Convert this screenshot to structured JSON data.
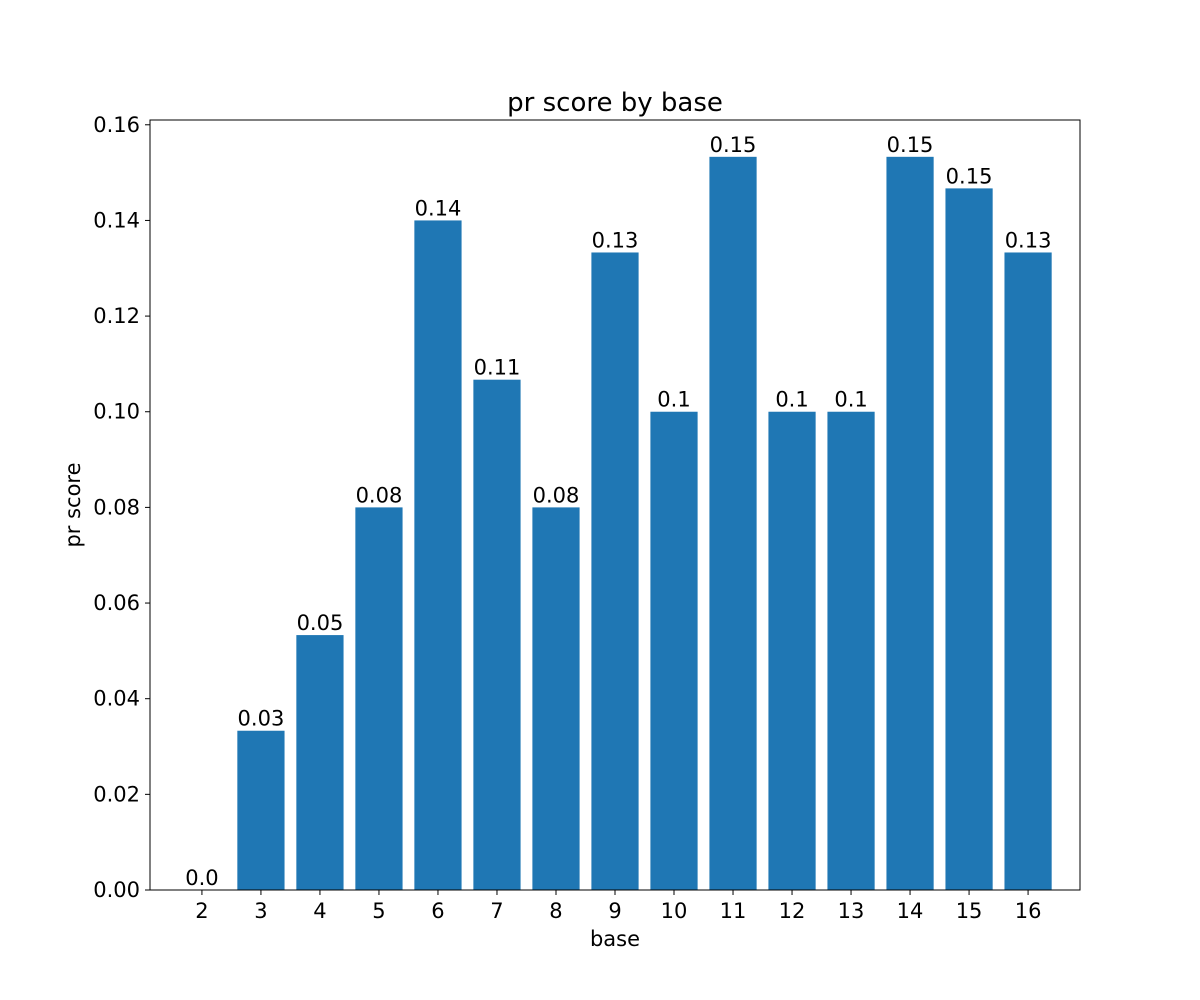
{
  "chart_data": {
    "type": "bar",
    "title": "pr score by base",
    "xlabel": "base",
    "ylabel": "pr score",
    "categories": [
      "2",
      "3",
      "4",
      "5",
      "6",
      "7",
      "8",
      "9",
      "10",
      "11",
      "12",
      "13",
      "14",
      "15",
      "16"
    ],
    "values": [
      0.0,
      0.0333,
      0.0533,
      0.08,
      0.14,
      0.1067,
      0.08,
      0.1333,
      0.1,
      0.1533,
      0.1,
      0.1,
      0.1533,
      0.1467,
      0.1333
    ],
    "data_labels": [
      "0.0",
      "0.03",
      "0.05",
      "0.08",
      "0.14",
      "0.11",
      "0.08",
      "0.13",
      "0.1",
      "0.15",
      "0.1",
      "0.1",
      "0.15",
      "0.15",
      "0.13"
    ],
    "ylim": [
      0,
      0.161
    ],
    "yticks": [
      0.0,
      0.02,
      0.04,
      0.06,
      0.08,
      0.1,
      0.12,
      0.14,
      0.16
    ],
    "ytick_labels": [
      "0.00",
      "0.02",
      "0.04",
      "0.06",
      "0.08",
      "0.10",
      "0.12",
      "0.14",
      "0.16"
    ],
    "bar_color": "#1f77b4",
    "grid": false,
    "legend": "none"
  }
}
